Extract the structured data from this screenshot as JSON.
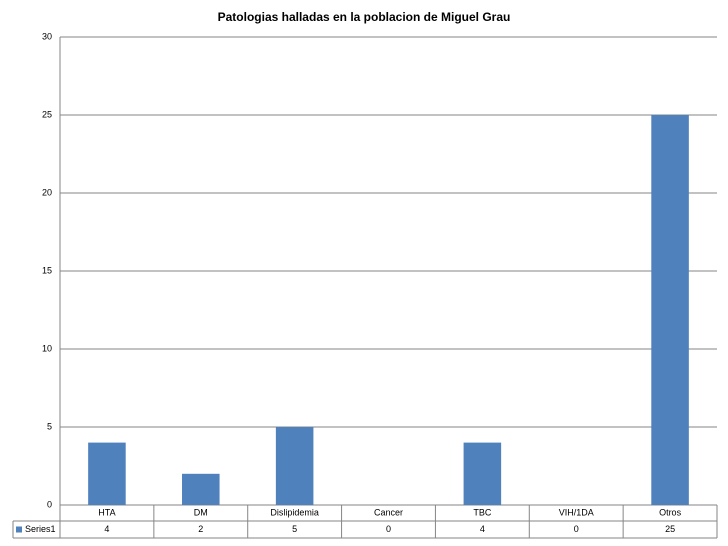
{
  "chart_data": {
    "type": "bar",
    "title": "Patologias halladas en la poblacion de Miguel Grau",
    "categories": [
      "HTA",
      "DM",
      "Dislipidemia",
      "Cancer",
      "TBC",
      "VIH/1DA",
      "Otros"
    ],
    "series": [
      {
        "name": "Series1",
        "color": "#4f81bd",
        "values": [
          4,
          2,
          5,
          0,
          4,
          0,
          25
        ]
      }
    ],
    "ylim": [
      0,
      30
    ],
    "yticks": [
      0,
      5,
      10,
      15,
      20,
      25,
      30
    ],
    "grid": true
  }
}
